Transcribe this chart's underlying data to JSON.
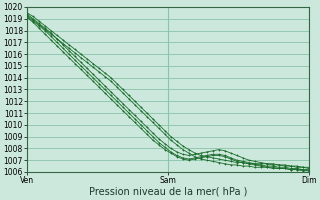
{
  "title": "",
  "xlabel": "Pression niveau de la mer( hPa )",
  "ylabel": "",
  "bg_color": "#cce8dc",
  "grid_color": "#88c4a8",
  "line_color": "#1a6b2a",
  "spine_color": "#336644",
  "ylim": [
    1006,
    1020
  ],
  "yticks": [
    1006,
    1007,
    1008,
    1009,
    1010,
    1011,
    1012,
    1013,
    1014,
    1015,
    1016,
    1017,
    1018,
    1019,
    1020
  ],
  "x_ticks_pos": [
    0.0,
    0.5,
    1.0
  ],
  "x_ticks_labels": [
    "Ven",
    "Sam",
    "Dim"
  ],
  "series": [
    [
      1019.5,
      1019.2,
      1018.8,
      1018.4,
      1018.0,
      1017.6,
      1017.2,
      1016.8,
      1016.4,
      1016.0,
      1015.6,
      1015.2,
      1014.8,
      1014.4,
      1014.0,
      1013.5,
      1013.0,
      1012.5,
      1012.0,
      1011.5,
      1011.0,
      1010.5,
      1010.0,
      1009.5,
      1009.0,
      1008.6,
      1008.2,
      1007.9,
      1007.6,
      1007.4,
      1007.3,
      1007.2,
      1007.1,
      1007.0,
      1006.9,
      1006.8,
      1006.8,
      1006.7,
      1006.7,
      1006.7,
      1006.7,
      1006.6,
      1006.6,
      1006.5,
      1006.5,
      1006.4,
      1006.4,
      1006.3
    ],
    [
      1019.3,
      1018.9,
      1018.5,
      1018.1,
      1017.7,
      1017.3,
      1016.9,
      1016.5,
      1016.1,
      1015.7,
      1015.3,
      1014.9,
      1014.5,
      1014.1,
      1013.7,
      1013.2,
      1012.7,
      1012.2,
      1011.7,
      1011.2,
      1010.7,
      1010.2,
      1009.7,
      1009.2,
      1008.7,
      1008.3,
      1007.9,
      1007.6,
      1007.3,
      1007.1,
      1007.0,
      1006.9,
      1006.8,
      1006.7,
      1006.6,
      1006.6,
      1006.5,
      1006.5,
      1006.4,
      1006.4,
      1006.4,
      1006.3,
      1006.3,
      1006.3,
      1006.2,
      1006.2,
      1006.2,
      1006.1
    ],
    [
      1019.4,
      1019.0,
      1018.6,
      1018.2,
      1017.8,
      1017.3,
      1016.8,
      1016.3,
      1015.8,
      1015.3,
      1014.8,
      1014.3,
      1013.8,
      1013.3,
      1012.8,
      1012.3,
      1011.8,
      1011.3,
      1010.8,
      1010.3,
      1009.8,
      1009.3,
      1008.8,
      1008.4,
      1008.0,
      1007.7,
      1007.5,
      1007.4,
      1007.5,
      1007.6,
      1007.7,
      1007.8,
      1007.9,
      1007.8,
      1007.6,
      1007.4,
      1007.2,
      1007.0,
      1006.9,
      1006.8,
      1006.7,
      1006.7,
      1006.6,
      1006.6,
      1006.5,
      1006.5,
      1006.4,
      1006.4
    ],
    [
      1019.2,
      1018.8,
      1018.4,
      1018.0,
      1017.5,
      1017.0,
      1016.5,
      1016.0,
      1015.5,
      1015.0,
      1014.5,
      1014.0,
      1013.5,
      1013.0,
      1012.5,
      1012.0,
      1011.5,
      1011.0,
      1010.5,
      1010.0,
      1009.5,
      1009.0,
      1008.5,
      1008.1,
      1007.7,
      1007.4,
      1007.2,
      1007.1,
      1007.2,
      1007.3,
      1007.4,
      1007.5,
      1007.5,
      1007.4,
      1007.2,
      1007.0,
      1006.9,
      1006.8,
      1006.7,
      1006.6,
      1006.5,
      1006.5,
      1006.4,
      1006.4,
      1006.3,
      1006.3,
      1006.2,
      1006.2
    ],
    [
      1019.1,
      1018.7,
      1018.2,
      1017.7,
      1017.2,
      1016.7,
      1016.2,
      1015.7,
      1015.2,
      1014.7,
      1014.2,
      1013.7,
      1013.2,
      1012.7,
      1012.2,
      1011.7,
      1011.2,
      1010.7,
      1010.2,
      1009.7,
      1009.2,
      1008.7,
      1008.3,
      1007.9,
      1007.6,
      1007.3,
      1007.1,
      1007.0,
      1007.1,
      1007.2,
      1007.3,
      1007.4,
      1007.4,
      1007.3,
      1007.1,
      1006.9,
      1006.8,
      1006.7,
      1006.6,
      1006.5,
      1006.4,
      1006.4,
      1006.3,
      1006.3,
      1006.2,
      1006.2,
      1006.1,
      1006.1
    ]
  ],
  "figsize": [
    3.2,
    2.0
  ],
  "dpi": 100,
  "tick_fontsize": 5.5,
  "xlabel_fontsize": 7
}
